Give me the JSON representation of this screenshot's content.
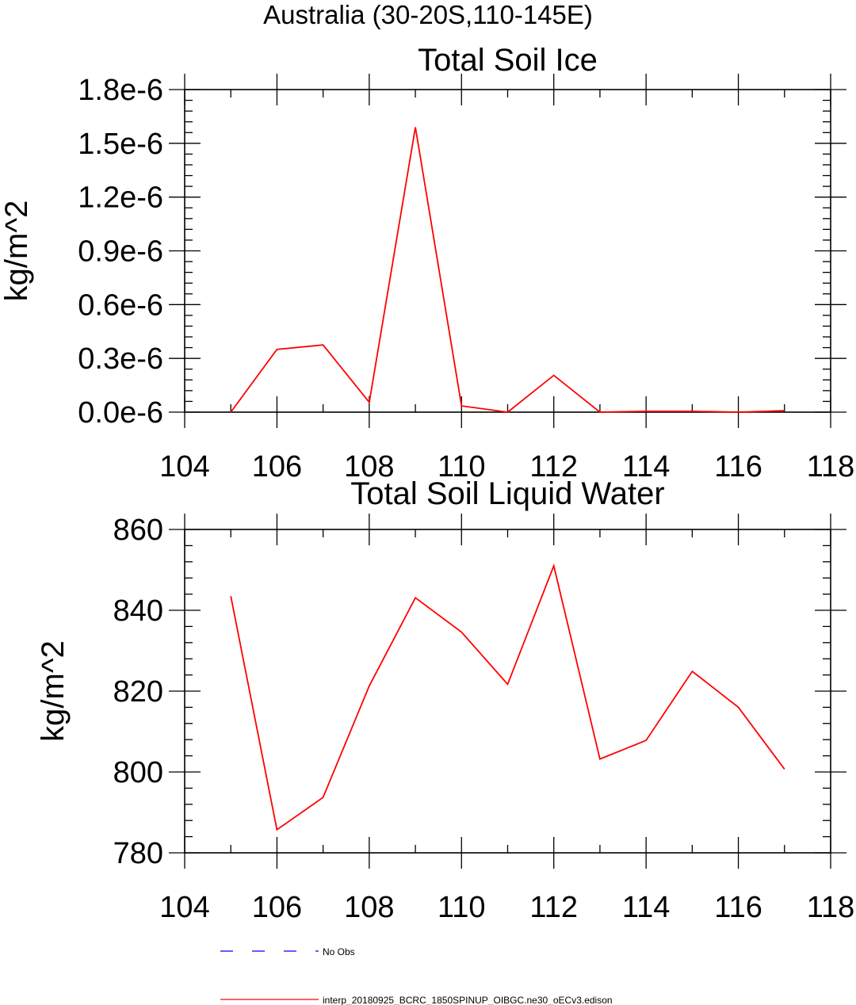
{
  "figure": {
    "supertitle": "Australia (30-20S,110-145E)"
  },
  "chart_data": [
    {
      "type": "line",
      "title": "Total Soil Ice",
      "xlabel": "",
      "ylabel": "kg/m^2",
      "xlim": [
        104,
        118
      ],
      "ylim": [
        0,
        1.8e-06
      ],
      "xticks": [
        104,
        106,
        108,
        110,
        112,
        114,
        116,
        118
      ],
      "xtick_labels": [
        "104",
        "106",
        "108",
        "110",
        "112",
        "114",
        "116",
        "118"
      ],
      "yticks": [
        0,
        3e-07,
        6e-07,
        9e-07,
        1.2e-06,
        1.5e-06,
        1.8e-06
      ],
      "ytick_labels": [
        "0.0e-6",
        "0.3e-6",
        "0.6e-6",
        "0.9e-6",
        "1.2e-6",
        "1.5e-6",
        "1.8e-6"
      ],
      "grid": false,
      "series": [
        {
          "name": "interp_20180925_BCRC_1850SPINUP_OIBGC.ne30_oECv3.edison",
          "color": "#ff0000",
          "x": [
            105,
            106,
            107,
            108,
            109,
            110,
            111,
            112,
            113,
            114,
            115,
            116,
            117
          ],
          "y": [
            0.0,
            3.5e-07,
            3.75e-07,
            5.5e-08,
            1.59e-06,
            3.5e-08,
            0.0,
            2.05e-07,
            0.0,
            5e-09,
            5e-09,
            0.0,
            8e-09
          ]
        }
      ]
    },
    {
      "type": "line",
      "title": "Total Soil Liquid Water",
      "xlabel": "",
      "ylabel": "kg/m^2",
      "xlim": [
        104,
        118
      ],
      "ylim": [
        780,
        860
      ],
      "xticks": [
        104,
        106,
        108,
        110,
        112,
        114,
        116,
        118
      ],
      "xtick_labels": [
        "104",
        "106",
        "108",
        "110",
        "112",
        "114",
        "116",
        "118"
      ],
      "yticks": [
        780,
        800,
        820,
        840,
        860
      ],
      "ytick_labels": [
        "780",
        "800",
        "820",
        "840",
        "860"
      ],
      "grid": false,
      "series": [
        {
          "name": "interp_20180925_BCRC_1850SPINUP_OIBGC.ne30_oECv3.edison",
          "color": "#ff0000",
          "x": [
            105,
            106,
            107,
            108,
            109,
            110,
            111,
            112,
            113,
            114,
            115,
            116,
            117
          ],
          "y": [
            843.5,
            785.7,
            793.7,
            821.3,
            843.1,
            834.6,
            821.7,
            851.0,
            803.2,
            807.8,
            824.9,
            816.0,
            800.7
          ]
        }
      ]
    }
  ],
  "legend": {
    "placement": "bottom",
    "entries": [
      {
        "label": "No Obs",
        "color": "#0000ff",
        "style": "dashed"
      },
      {
        "label": "interp_20180925_BCRC_1850SPINUP_OIBGC.ne30_oECv3.edison",
        "color": "#ff0000",
        "style": "solid"
      }
    ]
  }
}
